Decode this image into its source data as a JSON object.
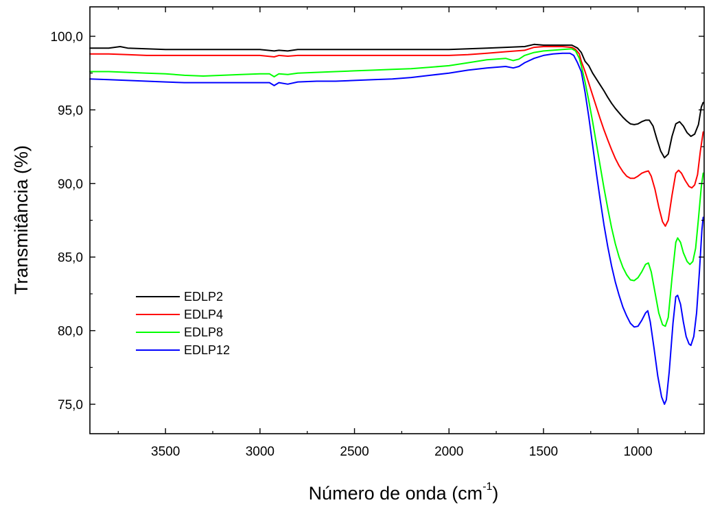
{
  "chart_data": {
    "type": "line",
    "title": "",
    "xlabel": "Número de onda (cm",
    "xlabel_sup": "-1",
    "xlabel_end": ")",
    "ylabel": "Transmitância (%)",
    "xlim": [
      3900,
      650
    ],
    "ylim": [
      73,
      102
    ],
    "x_ticks": [
      3500,
      3000,
      2500,
      2000,
      1500,
      1000
    ],
    "x_tick_labels": [
      "3500",
      "3000",
      "2500",
      "2000",
      "1500",
      "1000"
    ],
    "y_ticks": [
      75,
      80,
      85,
      90,
      95,
      100
    ],
    "y_tick_labels": [
      "75,0",
      "80,0",
      "85,0",
      "90,0",
      "95,0",
      "100,0"
    ],
    "grid": false,
    "legend_position": "bottom-left",
    "series": [
      {
        "name": "EDLP2",
        "color": "#000000",
        "points": [
          [
            3900,
            99.2
          ],
          [
            3800,
            99.2
          ],
          [
            3740,
            99.3
          ],
          [
            3700,
            99.2
          ],
          [
            3600,
            99.15
          ],
          [
            3500,
            99.1
          ],
          [
            3400,
            99.1
          ],
          [
            3300,
            99.1
          ],
          [
            3200,
            99.1
          ],
          [
            3100,
            99.1
          ],
          [
            3000,
            99.1
          ],
          [
            2960,
            99.05
          ],
          [
            2925,
            99.0
          ],
          [
            2900,
            99.05
          ],
          [
            2853,
            99.0
          ],
          [
            2800,
            99.1
          ],
          [
            2700,
            99.1
          ],
          [
            2600,
            99.1
          ],
          [
            2500,
            99.1
          ],
          [
            2400,
            99.1
          ],
          [
            2300,
            99.1
          ],
          [
            2200,
            99.1
          ],
          [
            2100,
            99.1
          ],
          [
            2000,
            99.1
          ],
          [
            1900,
            99.15
          ],
          [
            1800,
            99.2
          ],
          [
            1700,
            99.25
          ],
          [
            1600,
            99.3
          ],
          [
            1550,
            99.45
          ],
          [
            1500,
            99.4
          ],
          [
            1450,
            99.4
          ],
          [
            1400,
            99.4
          ],
          [
            1350,
            99.4
          ],
          [
            1320,
            99.2
          ],
          [
            1300,
            98.9
          ],
          [
            1280,
            98.3
          ],
          [
            1260,
            98.0
          ],
          [
            1240,
            97.5
          ],
          [
            1220,
            97.1
          ],
          [
            1200,
            96.7
          ],
          [
            1180,
            96.3
          ],
          [
            1160,
            95.85
          ],
          [
            1140,
            95.45
          ],
          [
            1120,
            95.1
          ],
          [
            1100,
            94.8
          ],
          [
            1080,
            94.5
          ],
          [
            1060,
            94.25
          ],
          [
            1040,
            94.05
          ],
          [
            1020,
            94.0
          ],
          [
            1000,
            94.05
          ],
          [
            980,
            94.2
          ],
          [
            960,
            94.3
          ],
          [
            940,
            94.3
          ],
          [
            920,
            93.9
          ],
          [
            900,
            93.0
          ],
          [
            880,
            92.2
          ],
          [
            860,
            91.75
          ],
          [
            840,
            92.0
          ],
          [
            820,
            93.2
          ],
          [
            800,
            94.05
          ],
          [
            780,
            94.2
          ],
          [
            760,
            93.9
          ],
          [
            740,
            93.45
          ],
          [
            720,
            93.2
          ],
          [
            700,
            93.35
          ],
          [
            680,
            94.0
          ],
          [
            665,
            95.2
          ],
          [
            655,
            95.5
          ]
        ]
      },
      {
        "name": "EDLP4",
        "color": "#ff0000",
        "points": [
          [
            3900,
            98.8
          ],
          [
            3800,
            98.8
          ],
          [
            3700,
            98.75
          ],
          [
            3600,
            98.7
          ],
          [
            3500,
            98.7
          ],
          [
            3400,
            98.7
          ],
          [
            3300,
            98.7
          ],
          [
            3200,
            98.7
          ],
          [
            3100,
            98.7
          ],
          [
            3000,
            98.7
          ],
          [
            2925,
            98.6
          ],
          [
            2900,
            98.7
          ],
          [
            2853,
            98.65
          ],
          [
            2800,
            98.7
          ],
          [
            2700,
            98.7
          ],
          [
            2600,
            98.7
          ],
          [
            2500,
            98.7
          ],
          [
            2400,
            98.7
          ],
          [
            2300,
            98.7
          ],
          [
            2200,
            98.7
          ],
          [
            2100,
            98.7
          ],
          [
            2000,
            98.7
          ],
          [
            1900,
            98.75
          ],
          [
            1800,
            98.85
          ],
          [
            1700,
            98.95
          ],
          [
            1600,
            99.05
          ],
          [
            1550,
            99.25
          ],
          [
            1500,
            99.3
          ],
          [
            1450,
            99.3
          ],
          [
            1400,
            99.3
          ],
          [
            1350,
            99.25
          ],
          [
            1330,
            99.1
          ],
          [
            1310,
            98.8
          ],
          [
            1300,
            98.3
          ],
          [
            1280,
            97.6
          ],
          [
            1260,
            96.8
          ],
          [
            1240,
            96.0
          ],
          [
            1220,
            95.2
          ],
          [
            1200,
            94.4
          ],
          [
            1180,
            93.65
          ],
          [
            1160,
            92.95
          ],
          [
            1140,
            92.3
          ],
          [
            1120,
            91.7
          ],
          [
            1100,
            91.2
          ],
          [
            1080,
            90.8
          ],
          [
            1060,
            90.5
          ],
          [
            1040,
            90.35
          ],
          [
            1020,
            90.35
          ],
          [
            1000,
            90.5
          ],
          [
            980,
            90.7
          ],
          [
            960,
            90.8
          ],
          [
            945,
            90.85
          ],
          [
            930,
            90.5
          ],
          [
            910,
            89.6
          ],
          [
            890,
            88.4
          ],
          [
            870,
            87.4
          ],
          [
            855,
            87.1
          ],
          [
            840,
            87.5
          ],
          [
            820,
            89.2
          ],
          [
            800,
            90.7
          ],
          [
            785,
            90.9
          ],
          [
            770,
            90.7
          ],
          [
            750,
            90.2
          ],
          [
            730,
            89.8
          ],
          [
            715,
            89.7
          ],
          [
            700,
            89.9
          ],
          [
            685,
            90.6
          ],
          [
            670,
            92.2
          ],
          [
            655,
            93.5
          ]
        ]
      },
      {
        "name": "EDLP8",
        "color": "#00ff00",
        "points": [
          [
            3900,
            97.6
          ],
          [
            3800,
            97.6
          ],
          [
            3700,
            97.55
          ],
          [
            3600,
            97.5
          ],
          [
            3500,
            97.45
          ],
          [
            3400,
            97.35
          ],
          [
            3300,
            97.3
          ],
          [
            3200,
            97.35
          ],
          [
            3100,
            97.4
          ],
          [
            3000,
            97.45
          ],
          [
            2950,
            97.45
          ],
          [
            2925,
            97.25
          ],
          [
            2900,
            97.45
          ],
          [
            2853,
            97.4
          ],
          [
            2800,
            97.5
          ],
          [
            2700,
            97.55
          ],
          [
            2600,
            97.6
          ],
          [
            2500,
            97.65
          ],
          [
            2400,
            97.7
          ],
          [
            2300,
            97.75
          ],
          [
            2200,
            97.8
          ],
          [
            2100,
            97.9
          ],
          [
            2000,
            98.0
          ],
          [
            1900,
            98.2
          ],
          [
            1800,
            98.4
          ],
          [
            1750,
            98.45
          ],
          [
            1700,
            98.5
          ],
          [
            1660,
            98.35
          ],
          [
            1630,
            98.45
          ],
          [
            1600,
            98.7
          ],
          [
            1550,
            98.9
          ],
          [
            1500,
            99.0
          ],
          [
            1450,
            99.05
          ],
          [
            1400,
            99.1
          ],
          [
            1350,
            99.15
          ],
          [
            1330,
            99.0
          ],
          [
            1310,
            98.5
          ],
          [
            1300,
            98.0
          ],
          [
            1280,
            96.9
          ],
          [
            1260,
            95.6
          ],
          [
            1240,
            94.2
          ],
          [
            1220,
            92.7
          ],
          [
            1200,
            91.2
          ],
          [
            1180,
            89.7
          ],
          [
            1160,
            88.3
          ],
          [
            1140,
            87.0
          ],
          [
            1120,
            85.9
          ],
          [
            1100,
            85.0
          ],
          [
            1080,
            84.3
          ],
          [
            1060,
            83.8
          ],
          [
            1040,
            83.45
          ],
          [
            1020,
            83.4
          ],
          [
            1000,
            83.6
          ],
          [
            980,
            84.0
          ],
          [
            960,
            84.5
          ],
          [
            945,
            84.6
          ],
          [
            930,
            84.0
          ],
          [
            910,
            82.6
          ],
          [
            890,
            81.2
          ],
          [
            870,
            80.4
          ],
          [
            855,
            80.3
          ],
          [
            840,
            80.9
          ],
          [
            820,
            83.6
          ],
          [
            800,
            86.0
          ],
          [
            790,
            86.3
          ],
          [
            775,
            86.0
          ],
          [
            760,
            85.3
          ],
          [
            740,
            84.7
          ],
          [
            725,
            84.5
          ],
          [
            710,
            84.7
          ],
          [
            695,
            85.6
          ],
          [
            680,
            87.6
          ],
          [
            665,
            89.8
          ],
          [
            655,
            90.7
          ]
        ]
      },
      {
        "name": "EDLP12",
        "color": "#0000ff",
        "points": [
          [
            3900,
            97.1
          ],
          [
            3800,
            97.05
          ],
          [
            3700,
            97.0
          ],
          [
            3600,
            96.95
          ],
          [
            3500,
            96.9
          ],
          [
            3400,
            96.85
          ],
          [
            3300,
            96.85
          ],
          [
            3200,
            96.85
          ],
          [
            3100,
            96.85
          ],
          [
            3000,
            96.85
          ],
          [
            2950,
            96.85
          ],
          [
            2925,
            96.65
          ],
          [
            2900,
            96.85
          ],
          [
            2853,
            96.75
          ],
          [
            2800,
            96.9
          ],
          [
            2700,
            96.95
          ],
          [
            2600,
            96.95
          ],
          [
            2500,
            97.0
          ],
          [
            2400,
            97.05
          ],
          [
            2300,
            97.1
          ],
          [
            2200,
            97.2
          ],
          [
            2100,
            97.35
          ],
          [
            2000,
            97.5
          ],
          [
            1900,
            97.7
          ],
          [
            1800,
            97.85
          ],
          [
            1700,
            97.95
          ],
          [
            1660,
            97.85
          ],
          [
            1630,
            97.95
          ],
          [
            1600,
            98.2
          ],
          [
            1550,
            98.5
          ],
          [
            1500,
            98.7
          ],
          [
            1450,
            98.8
          ],
          [
            1400,
            98.85
          ],
          [
            1360,
            98.85
          ],
          [
            1340,
            98.7
          ],
          [
            1320,
            98.2
          ],
          [
            1300,
            97.6
          ],
          [
            1280,
            96.2
          ],
          [
            1260,
            94.5
          ],
          [
            1240,
            92.6
          ],
          [
            1220,
            90.7
          ],
          [
            1200,
            88.9
          ],
          [
            1180,
            87.2
          ],
          [
            1160,
            85.7
          ],
          [
            1140,
            84.4
          ],
          [
            1120,
            83.3
          ],
          [
            1100,
            82.4
          ],
          [
            1080,
            81.6
          ],
          [
            1060,
            81.0
          ],
          [
            1040,
            80.5
          ],
          [
            1020,
            80.25
          ],
          [
            1000,
            80.3
          ],
          [
            980,
            80.7
          ],
          [
            960,
            81.2
          ],
          [
            948,
            81.35
          ],
          [
            935,
            80.6
          ],
          [
            915,
            78.8
          ],
          [
            895,
            76.9
          ],
          [
            875,
            75.5
          ],
          [
            860,
            75.0
          ],
          [
            850,
            75.3
          ],
          [
            835,
            77.2
          ],
          [
            815,
            80.5
          ],
          [
            800,
            82.3
          ],
          [
            790,
            82.4
          ],
          [
            775,
            81.8
          ],
          [
            760,
            80.6
          ],
          [
            745,
            79.6
          ],
          [
            730,
            79.1
          ],
          [
            720,
            79.0
          ],
          [
            705,
            79.6
          ],
          [
            690,
            81.2
          ],
          [
            675,
            84.0
          ],
          [
            662,
            86.8
          ],
          [
            655,
            87.7
          ]
        ]
      }
    ]
  }
}
